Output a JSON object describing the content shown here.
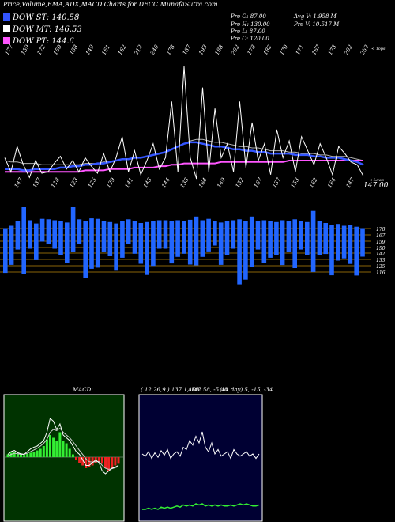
{
  "title": "Price,Volume,EMA,ADX,MACD Charts for DECC MunafaSutra.com",
  "legend": [
    {
      "label": "DOW ST: 140.58",
      "color": "#3355ff"
    },
    {
      "label": "DOW MT: 146.53",
      "color": "#ffffff"
    },
    {
      "label": "DOW PT: 144.6",
      "color": "#ff55ff"
    }
  ],
  "stats": {
    "prev_open": "Pre   O: 87.00",
    "prev_high": "Pre   H: 130.00",
    "prev_low": "Pre   L: 87.00",
    "prev_close": "Pre   C: 120.00",
    "avg_vol": "Avg V: 1.958 M",
    "prev_vol": "Pre   V: 10.517 M"
  },
  "price_label": "147.00",
  "top_side_label": "< Tops",
  "low_side_label": "< Lows",
  "colors": {
    "price": "#ffffff",
    "ema_short": "#3355ff",
    "ema_long": "#ff55ff",
    "volume": "#2266ff",
    "macd_bg": "#003300",
    "adx_bg": "#000033"
  },
  "chart_data": [
    {
      "type": "line",
      "name": "price-ema",
      "tops": [
        177,
        159,
        172,
        150,
        158,
        149,
        161,
        162,
        212,
        240,
        178,
        187,
        193,
        188,
        202,
        178,
        182,
        170,
        171,
        167,
        173,
        202,
        252
      ],
      "lows": [
        147,
        137,
        118,
        123,
        125,
        129,
        141,
        143,
        144,
        138,
        164,
        149,
        152,
        167,
        137,
        153,
        162,
        164,
        147
      ],
      "price": [
        160,
        150,
        168,
        155,
        146,
        158,
        149,
        150,
        156,
        161,
        152,
        158,
        150,
        160,
        154,
        149,
        163,
        150,
        160,
        175,
        150,
        165,
        148,
        158,
        170,
        152,
        160,
        200,
        150,
        225,
        160,
        145,
        210,
        150,
        195,
        160,
        170,
        150,
        200,
        153,
        185,
        158,
        170,
        148,
        180,
        160,
        172,
        150,
        175,
        165,
        155,
        170,
        160,
        148,
        168,
        163,
        157,
        155,
        147
      ],
      "ema_short": [
        152,
        152,
        152,
        151,
        151,
        152,
        152,
        152,
        152,
        153,
        153,
        154,
        154,
        155,
        155,
        156,
        156,
        157,
        158,
        159,
        159,
        160,
        160,
        161,
        162,
        163,
        164,
        166,
        168,
        170,
        171,
        171,
        170,
        169,
        168,
        168,
        167,
        166,
        166,
        165,
        165,
        164,
        164,
        163,
        163,
        163,
        163,
        162,
        162,
        162,
        161,
        161,
        160,
        160,
        160,
        159,
        158,
        157,
        155
      ],
      "ema_mid": [
        158,
        157,
        157,
        156,
        156,
        156,
        155,
        155,
        155,
        155,
        155,
        155,
        155,
        156,
        156,
        156,
        157,
        157,
        158,
        159,
        159,
        160,
        160,
        161,
        162,
        163,
        164,
        166,
        168,
        170,
        172,
        173,
        173,
        172,
        171,
        171,
        170,
        169,
        168,
        168,
        167,
        167,
        166,
        165,
        165,
        165,
        164,
        164,
        163,
        163,
        163,
        162,
        162,
        161,
        161,
        161,
        160,
        159,
        158
      ],
      "ema_long": [
        150,
        150,
        150,
        150,
        150,
        150,
        150,
        150,
        150,
        150,
        150,
        150,
        150,
        151,
        151,
        151,
        151,
        152,
        152,
        152,
        152,
        153,
        153,
        153,
        153,
        154,
        154,
        155,
        155,
        156,
        156,
        156,
        156,
        156,
        156,
        157,
        157,
        157,
        157,
        157,
        157,
        157,
        157,
        157,
        157,
        157,
        158,
        158,
        158,
        158,
        158,
        158,
        158,
        158,
        158,
        158,
        158,
        158,
        158
      ]
    },
    {
      "type": "bar",
      "name": "volume",
      "ticks": [
        178,
        167,
        159,
        150,
        142,
        133,
        125,
        116
      ],
      "values": [
        0.55,
        0.48,
        0.35,
        0.82,
        0.35,
        0.45,
        0.28,
        0.3,
        0.35,
        0.42,
        0.5,
        0.55,
        0.3,
        0.7,
        0.62,
        0.6,
        0.38,
        0.42,
        0.58,
        0.45,
        0.3,
        0.4,
        0.5,
        0.65,
        0.55,
        0.35,
        0.35,
        0.52,
        0.45,
        0.4,
        0.55,
        0.6,
        0.45,
        0.4,
        0.3,
        0.52,
        0.42,
        0.35,
        0.8,
        0.72,
        0.62,
        0.35,
        0.52,
        0.45,
        0.4,
        0.55,
        0.38,
        0.6,
        0.35,
        0.4,
        0.75,
        0.42,
        0.38,
        0.62,
        0.45,
        0.4,
        0.48,
        0.6,
        0.35
      ],
      "tops": [
        0.45,
        0.4,
        0.3,
        0.0,
        0.28,
        0.35,
        0.25,
        0.26,
        0.28,
        0.3,
        0.33,
        0.0,
        0.26,
        0.3,
        0.24,
        0.25,
        0.3,
        0.32,
        0.35,
        0.3,
        0.26,
        0.3,
        0.34,
        0.32,
        0.3,
        0.28,
        0.28,
        0.3,
        0.28,
        0.3,
        0.27,
        0.2,
        0.28,
        0.25,
        0.3,
        0.33,
        0.3,
        0.28,
        0.26,
        0.3,
        0.2,
        0.3,
        0.28,
        0.3,
        0.32,
        0.28,
        0.3,
        0.26,
        0.3,
        0.32,
        0.08,
        0.3,
        0.34,
        0.38,
        0.36,
        0.4,
        0.38,
        0.42,
        0.45
      ]
    },
    {
      "type": "bar",
      "name": "macd",
      "label": "MACD:",
      "params": "( 12,26,9 ) 137.1,  142.58,  -5.48",
      "histogram": [
        0.5,
        0.8,
        1.0,
        0.6,
        0.5,
        0.4,
        0.6,
        0.8,
        1.0,
        1.2,
        1.5,
        2.0,
        3.2,
        4.0,
        3.5,
        3.0,
        4.5,
        3.0,
        2.5,
        1.5,
        0.5,
        -0.5,
        -1.0,
        -1.5,
        -2.0,
        -1.8,
        -1.5,
        -1.0,
        -0.8,
        -1.2,
        -2.0,
        -2.5,
        -2.0,
        -1.5,
        -1.2
      ],
      "macd_line": [
        0.5,
        1.0,
        1.2,
        0.8,
        0.6,
        0.5,
        1.0,
        1.5,
        1.8,
        2.0,
        2.5,
        3.0,
        4.5,
        7.0,
        6.5,
        5.0,
        6.0,
        4.0,
        3.5,
        3.0,
        2.0,
        1.0,
        0.5,
        -0.5,
        -1.5,
        -1.5,
        -1.0,
        -0.5,
        -1.0,
        -2.5,
        -3.0,
        -2.5,
        -2.0,
        -1.8,
        -1.5
      ],
      "signal_line": [
        0.2,
        0.5,
        0.7,
        0.6,
        0.5,
        0.5,
        0.7,
        1.0,
        1.3,
        1.6,
        2.0,
        2.5,
        3.2,
        4.5,
        5.0,
        4.8,
        5.2,
        4.5,
        4.0,
        3.5,
        2.8,
        2.0,
        1.2,
        0.5,
        -0.3,
        -0.8,
        -0.9,
        -0.8,
        -0.8,
        -1.5,
        -2.0,
        -2.2,
        -2.1,
        -1.9,
        -1.7
      ]
    },
    {
      "type": "line",
      "name": "adx",
      "label": "ADX",
      "params": "(14  day) 5,  -15,  -34",
      "adx": [
        60,
        58,
        62,
        56,
        61,
        57,
        63,
        59,
        64,
        56,
        60,
        62,
        58,
        66,
        64,
        72,
        68,
        76,
        70,
        80,
        66,
        62,
        70,
        60,
        64,
        58,
        60,
        62,
        56,
        64,
        60,
        58,
        60,
        62,
        58,
        60,
        56,
        60
      ],
      "plus_di": [
        10,
        10,
        11,
        10,
        11,
        10,
        12,
        11,
        12,
        11,
        12,
        13,
        12,
        14,
        13,
        14,
        13,
        15,
        14,
        15,
        13,
        14,
        13,
        14,
        13,
        14,
        13,
        13,
        14,
        13,
        14,
        15,
        14,
        15,
        14,
        13,
        13,
        14
      ]
    }
  ]
}
